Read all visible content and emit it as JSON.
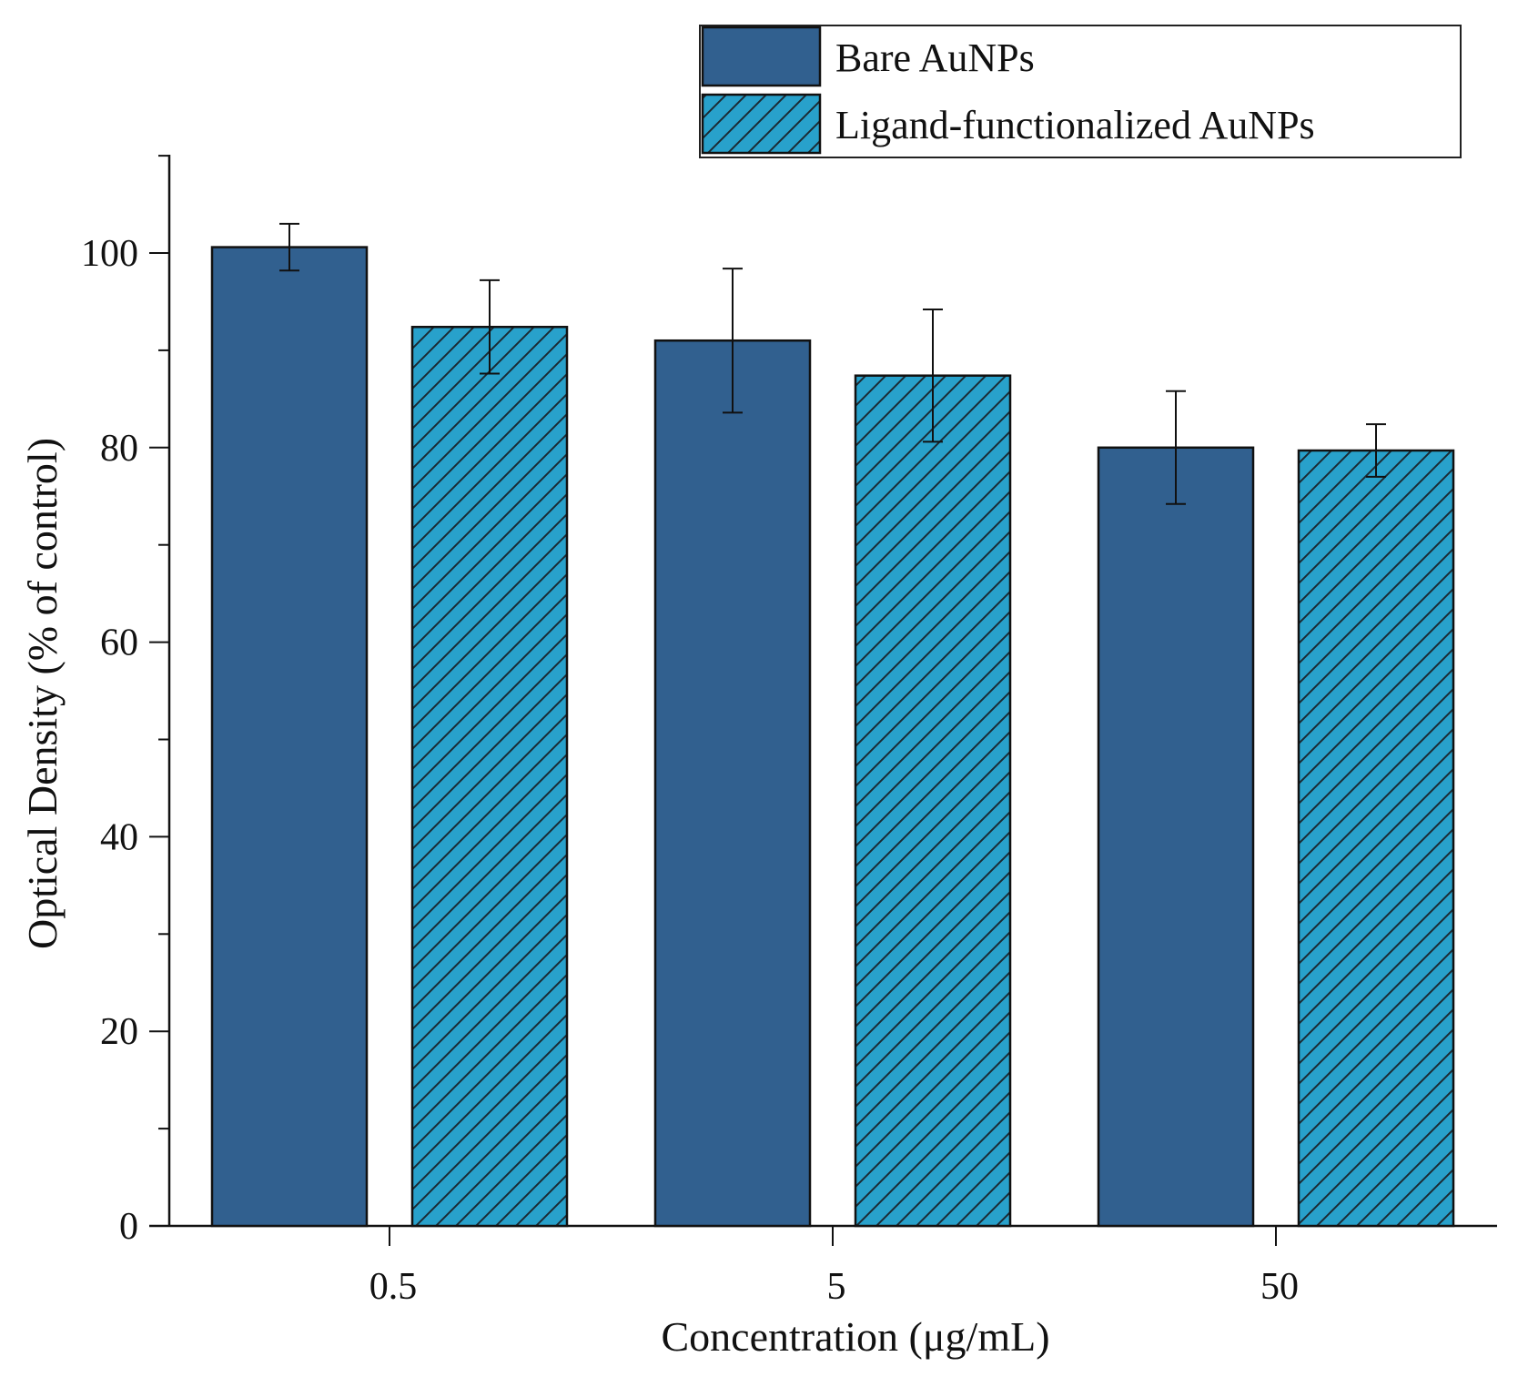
{
  "chart_data": {
    "type": "bar",
    "title": "",
    "xlabel": "Concentration (μg/mL)",
    "ylabel": "Optical Density (% of control)",
    "categories": [
      "0.5",
      "5",
      "50"
    ],
    "ylim": [
      0,
      110
    ],
    "yticks": [
      0,
      20,
      40,
      60,
      80,
      100
    ],
    "yticks_labels": [
      "0",
      "20",
      "40",
      "60",
      "80",
      "100"
    ],
    "grid": false,
    "legend_position": "top-right",
    "series": [
      {
        "name": "Bare AuNPs",
        "color": "#31608f",
        "pattern": "solid",
        "values": [
          100.6,
          91.0,
          80.0
        ],
        "errors": [
          2.4,
          7.4,
          5.8
        ]
      },
      {
        "name": "Ligand-functionalized AuNPs",
        "color": "#28a1cb",
        "pattern": "hatch",
        "values": [
          92.4,
          87.4,
          79.7
        ],
        "errors": [
          4.8,
          6.8,
          2.7
        ]
      }
    ]
  }
}
